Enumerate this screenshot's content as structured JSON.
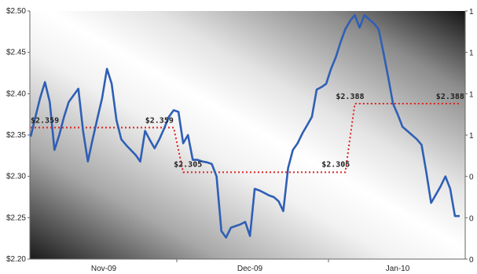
{
  "chart_data": {
    "type": "line",
    "title": "",
    "xlabel": "",
    "ylabel": "",
    "ylim": [
      2.2,
      2.5
    ],
    "y_ticks": [
      "$2.20",
      "$2.25",
      "$2.30",
      "$2.35",
      "$2.40",
      "$2.45",
      "$2.50"
    ],
    "y2_ticks": [
      "0",
      "0",
      "0",
      "1",
      "1",
      "1",
      "1"
    ],
    "x_ticks": [
      "Nov-09",
      "Dec-09",
      "Jan-10"
    ],
    "grid": false,
    "colors": {
      "price": "#2f5fb5",
      "average": "#dd2222"
    },
    "series": [
      {
        "style": "solid",
        "values": [
          2.348,
          2.372,
          2.395,
          2.414,
          2.39,
          2.332,
          2.35,
          2.372,
          2.39,
          2.398,
          2.406,
          2.355,
          2.318,
          2.345,
          2.37,
          2.395,
          2.43,
          2.412,
          2.368,
          2.345,
          2.338,
          2.332,
          2.326,
          2.318,
          2.355,
          2.344,
          2.334,
          2.345,
          2.358,
          2.372,
          2.38,
          2.378,
          2.34,
          2.35,
          2.32,
          2.32,
          2.318,
          2.317,
          2.315,
          2.3,
          2.234,
          2.226,
          2.238,
          2.24,
          2.242,
          2.245,
          2.228,
          2.285,
          2.283,
          2.28,
          2.277,
          2.275,
          2.27,
          2.258,
          2.31,
          2.332,
          2.34,
          2.352,
          2.362,
          2.372,
          2.405,
          2.408,
          2.412,
          2.43,
          2.444,
          2.462,
          2.478,
          2.488,
          2.495,
          2.48,
          2.495,
          2.49,
          2.485,
          2.478,
          2.45,
          2.42,
          2.388,
          2.375,
          2.36,
          2.355,
          2.35,
          2.345,
          2.338,
          2.305,
          2.268,
          2.278,
          2.288,
          2.3,
          2.285,
          2.252,
          2.252
        ]
      },
      {
        "style": "dotted",
        "segments": [
          {
            "from": 0,
            "to": 30,
            "value": 2.359
          },
          {
            "from": 32,
            "to": 66,
            "value": 2.305
          },
          {
            "from": 68,
            "to": 90,
            "value": 2.388
          }
        ]
      }
    ],
    "data_labels": [
      "$2.359",
      "$2.359",
      "$2.305",
      "$2.305",
      "$2.388",
      "$2.388"
    ]
  }
}
